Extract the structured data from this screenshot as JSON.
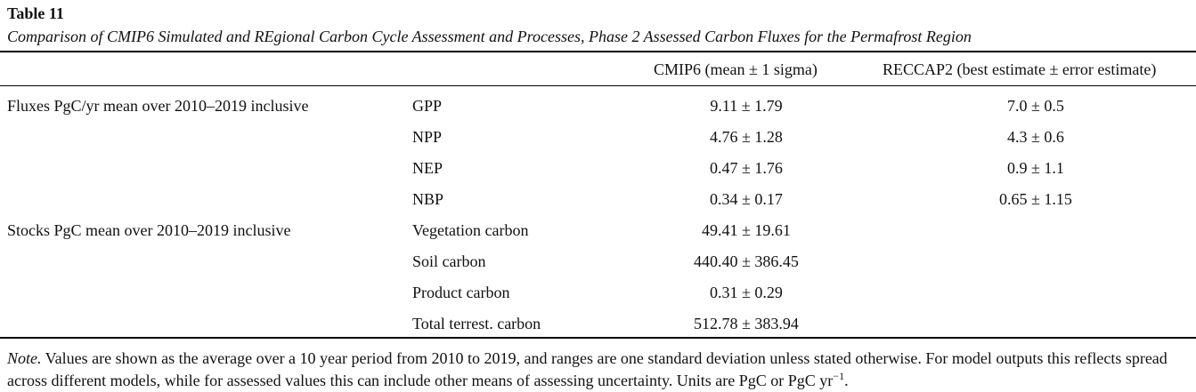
{
  "table": {
    "label": "Table 11",
    "caption": "Comparison of CMIP6 Simulated and REgional Carbon Cycle Assessment and Processes, Phase 2 Assessed Carbon Fluxes for the Permafrost Region",
    "headers": [
      "",
      "",
      "CMIP6 (mean ± 1 sigma)",
      "RECCAP2 (best estimate ± error estimate)"
    ],
    "rows": [
      {
        "group": "Fluxes PgC/yr mean over 2010–2019 inclusive",
        "variable": "GPP",
        "cmip6": "9.11 ± 1.79",
        "reccap2": "7.0 ± 0.5"
      },
      {
        "group": "",
        "variable": "NPP",
        "cmip6": "4.76 ± 1.28",
        "reccap2": "4.3 ± 0.6"
      },
      {
        "group": "",
        "variable": "NEP",
        "cmip6": "0.47 ± 1.76",
        "reccap2": "0.9 ± 1.1"
      },
      {
        "group": "",
        "variable": "NBP",
        "cmip6": "0.34 ± 0.17",
        "reccap2": "0.65 ± 1.15"
      },
      {
        "group": "Stocks PgC mean over 2010–2019 inclusive",
        "variable": "Vegetation carbon",
        "cmip6": "49.41 ± 19.61",
        "reccap2": ""
      },
      {
        "group": "",
        "variable": "Soil carbon",
        "cmip6": "440.40 ± 386.45",
        "reccap2": ""
      },
      {
        "group": "",
        "variable": "Product carbon",
        "cmip6": "0.31 ± 0.29",
        "reccap2": ""
      },
      {
        "group": "",
        "variable": "Total terrest. carbon",
        "cmip6": "512.78 ± 383.94",
        "reccap2": ""
      }
    ],
    "note": {
      "label": "Note.",
      "text": " Values are shown as the average over a 10 year period from 2010 to 2019, and ranges are one standard deviation unless stated otherwise. For model outputs this reflects spread across different models, while for assessed values this can include other means of assessing uncertainty. Units are PgC or PgC yr",
      "superscript": "−1",
      "end": "."
    }
  }
}
